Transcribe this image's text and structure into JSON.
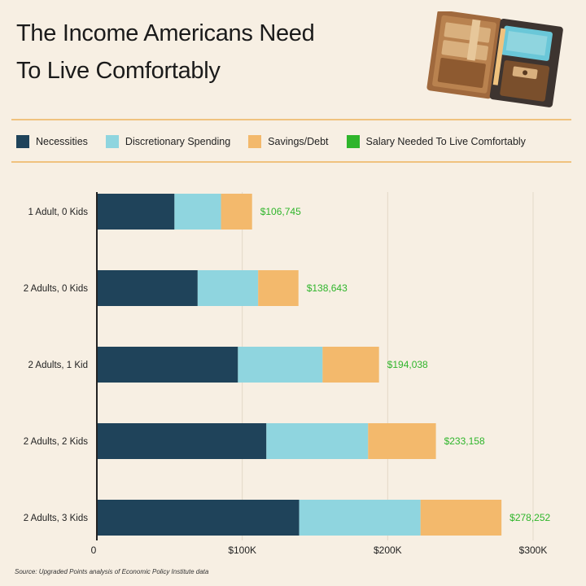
{
  "title_lines": [
    "The Income Americans Need",
    "To Live Comfortably"
  ],
  "icon": "wallet-icon",
  "legend": [
    {
      "label": "Necessities",
      "color": "#1f435a"
    },
    {
      "label": "Discretionary Spending",
      "color": "#8fd5df"
    },
    {
      "label": "Savings/Debt",
      "color": "#f3b96c"
    },
    {
      "label": "Salary Needed To Live Comfortably",
      "color": "#2fb52b"
    }
  ],
  "source": "Source: Upgraded Points analysis of Economic Policy Institute data",
  "chart_data": {
    "type": "bar",
    "orientation": "horizontal",
    "stacked": true,
    "categories": [
      "1 Adult, 0 Kids",
      "2 Adults, 0 Kids",
      "2 Adults, 1 Kid",
      "2 Adults, 2 Kids",
      "2 Adults, 3 Kids"
    ],
    "series": [
      {
        "name": "Necessities",
        "color": "#1f435a",
        "values": [
          53373,
          69322,
          97019,
          116579,
          139126
        ]
      },
      {
        "name": "Discretionary Spending",
        "color": "#8fd5df",
        "values": [
          32023,
          41593,
          58212,
          69947,
          83476
        ]
      },
      {
        "name": "Savings/Debt",
        "color": "#f3b96c",
        "values": [
          21349,
          27728,
          38807,
          46632,
          55650
        ]
      }
    ],
    "totals": [
      "$106,745",
      "$138,643",
      "$194,038",
      "$233,158",
      "$278,252"
    ],
    "total_color": "#2fb52b",
    "xlim": [
      0,
      300000
    ],
    "xticks": [
      {
        "value": 0,
        "label": "0"
      },
      {
        "value": 100000,
        "label": "$100K"
      },
      {
        "value": 200000,
        "label": "$200K"
      },
      {
        "value": 300000,
        "label": "$300K"
      }
    ],
    "grid": true,
    "legend_position": "top"
  }
}
